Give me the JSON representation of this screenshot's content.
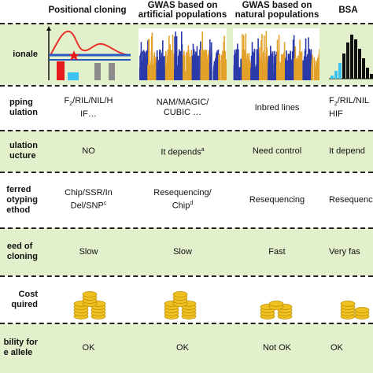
{
  "columns": [
    {
      "key": "positional",
      "title": "Positional cloning"
    },
    {
      "key": "gwas_artificial",
      "title_line1": "GWAS based on",
      "title_line2": "artificial populations"
    },
    {
      "key": "gwas_natural",
      "title_line1": "GWAS based on",
      "title_line2": "natural populations"
    },
    {
      "key": "bsa",
      "title": "BSA"
    }
  ],
  "rows": {
    "rationale": {
      "label": "ionale"
    },
    "mapping_population": {
      "label_line1": "pping",
      "label_line2": "ulation",
      "positional_line1": "F",
      "positional_sub": "2",
      "positional_rest": "/RIL/NIL/H",
      "positional_line2": "IF…",
      "gwas_artificial_line1": "NAM/MAGIC/",
      "gwas_artificial_line2": "CUBIC …",
      "gwas_natural": "Inbred lines",
      "bsa_line1": "F",
      "bsa_sub": "2",
      "bsa_rest": "/RIL/NIL",
      "bsa_line2": "HIF"
    },
    "population_structure": {
      "label_line1": "ulation",
      "label_line2": "ucture",
      "positional": "NO",
      "gwas_artificial": "It depends",
      "gwas_artificial_sup": "a",
      "gwas_natural": "Need control",
      "bsa": "It depend"
    },
    "genotyping_method": {
      "label_line1": "ferred",
      "label_line2": "otyping",
      "label_line3": "ethod",
      "positional_line1": "Chip/SSR/In",
      "positional_line2": "Del/SNP",
      "positional_sup": "c",
      "gwas_artificial_line1": "Resequencing/",
      "gwas_artificial_line2": "Chip",
      "gwas_artificial_sup": "d",
      "gwas_natural": "Resequencing",
      "bsa": "Resequenc"
    },
    "speed": {
      "label_line1": "eed of",
      "label_line2": "cloning",
      "positional": "Slow",
      "gwas_artificial": "Slow",
      "gwas_natural": "Fast",
      "bsa": "Very fas"
    },
    "cost": {
      "label_line1": "Cost",
      "label_line2": "quired"
    },
    "applicability": {
      "label_line1": "bility for",
      "label_line2": "e allele",
      "positional": "OK",
      "gwas_artificial": "OK",
      "gwas_natural": "Not OK",
      "bsa": "OK"
    }
  },
  "colors": {
    "row_bg": "#e3f0cc",
    "curve": "#e8322a",
    "blue_line": "#2b59c3",
    "red_bar": "#e51b1b",
    "cyan_bar": "#3ec3f0",
    "gray_bar": "#8c8c8c",
    "manhattan_blue": "#2b3aa8",
    "manhattan_orange": "#e3a12a",
    "coin": "#f0c020"
  },
  "icons": {
    "rationale_positional": "qtl-mapping-icon",
    "rationale_gwas": "manhattan-plot-icon",
    "rationale_bsa": "bsa-histogram-icon",
    "cost": "coin-stack-icon"
  }
}
